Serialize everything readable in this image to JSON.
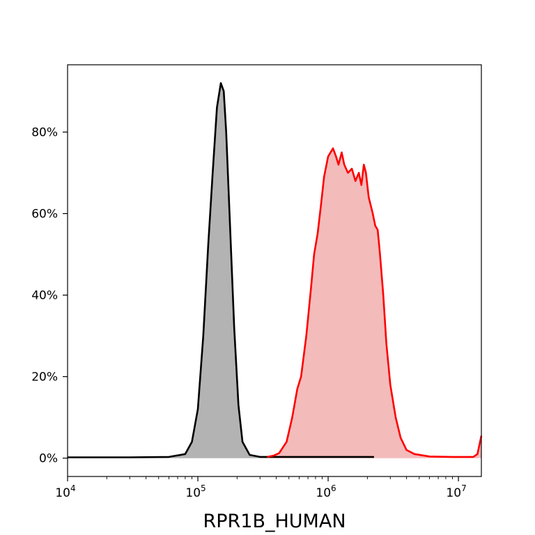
{
  "chart_data": {
    "type": "area",
    "xlabel": "RPR1B_HUMAN",
    "ylabel": "",
    "x_scale": "log",
    "xlim": [
      10000,
      15000000
    ],
    "ylim": [
      -0.045,
      0.965
    ],
    "x_ticks": [
      {
        "value": 10000,
        "base": "10",
        "exp": "4"
      },
      {
        "value": 100000,
        "base": "10",
        "exp": "5"
      },
      {
        "value": 1000000,
        "base": "10",
        "exp": "6"
      },
      {
        "value": 10000000,
        "base": "10",
        "exp": "7"
      }
    ],
    "y_ticks": [
      {
        "value": 0.0,
        "label": "0%"
      },
      {
        "value": 0.2,
        "label": "20%"
      },
      {
        "value": 0.4,
        "label": "40%"
      },
      {
        "value": 0.6,
        "label": "60%"
      },
      {
        "value": 0.8,
        "label": "80%"
      }
    ],
    "grid": false,
    "series": [
      {
        "color": "#000000",
        "fill": "#b3b3b3",
        "points": [
          [
            10000,
            0.002
          ],
          [
            30000,
            0.002
          ],
          [
            60000,
            0.003
          ],
          [
            80000,
            0.01
          ],
          [
            90000,
            0.04
          ],
          [
            100000,
            0.12
          ],
          [
            110000,
            0.3
          ],
          [
            120000,
            0.52
          ],
          [
            130000,
            0.7
          ],
          [
            140000,
            0.86
          ],
          [
            150000,
            0.92
          ],
          [
            158000,
            0.9
          ],
          [
            165000,
            0.8
          ],
          [
            175000,
            0.6
          ],
          [
            190000,
            0.32
          ],
          [
            205000,
            0.13
          ],
          [
            220000,
            0.04
          ],
          [
            250000,
            0.008
          ],
          [
            300000,
            0.003
          ],
          [
            2250000,
            0.003
          ]
        ]
      },
      {
        "color": "#ff0000",
        "fill": "#f4bbbb",
        "points": [
          [
            340000,
            0.003
          ],
          [
            380000,
            0.006
          ],
          [
            420000,
            0.012
          ],
          [
            480000,
            0.04
          ],
          [
            530000,
            0.1
          ],
          [
            580000,
            0.17
          ],
          [
            620000,
            0.2
          ],
          [
            680000,
            0.3
          ],
          [
            740000,
            0.42
          ],
          [
            780000,
            0.5
          ],
          [
            830000,
            0.55
          ],
          [
            880000,
            0.62
          ],
          [
            930000,
            0.69
          ],
          [
            1000000,
            0.74
          ],
          [
            1090000,
            0.76
          ],
          [
            1150000,
            0.74
          ],
          [
            1200000,
            0.72
          ],
          [
            1270000,
            0.75
          ],
          [
            1330000,
            0.72
          ],
          [
            1420000,
            0.7
          ],
          [
            1520000,
            0.71
          ],
          [
            1620000,
            0.68
          ],
          [
            1720000,
            0.7
          ],
          [
            1800000,
            0.67
          ],
          [
            1880000,
            0.72
          ],
          [
            1950000,
            0.7
          ],
          [
            2050000,
            0.64
          ],
          [
            2200000,
            0.6
          ],
          [
            2300000,
            0.57
          ],
          [
            2400000,
            0.56
          ],
          [
            2500000,
            0.5
          ],
          [
            2650000,
            0.4
          ],
          [
            2800000,
            0.28
          ],
          [
            3000000,
            0.18
          ],
          [
            3300000,
            0.1
          ],
          [
            3600000,
            0.05
          ],
          [
            4000000,
            0.02
          ],
          [
            4600000,
            0.01
          ],
          [
            6000000,
            0.004
          ],
          [
            9000000,
            0.003
          ],
          [
            13000000,
            0.003
          ],
          [
            14000000,
            0.01
          ],
          [
            15000000,
            0.055
          ]
        ]
      }
    ]
  }
}
